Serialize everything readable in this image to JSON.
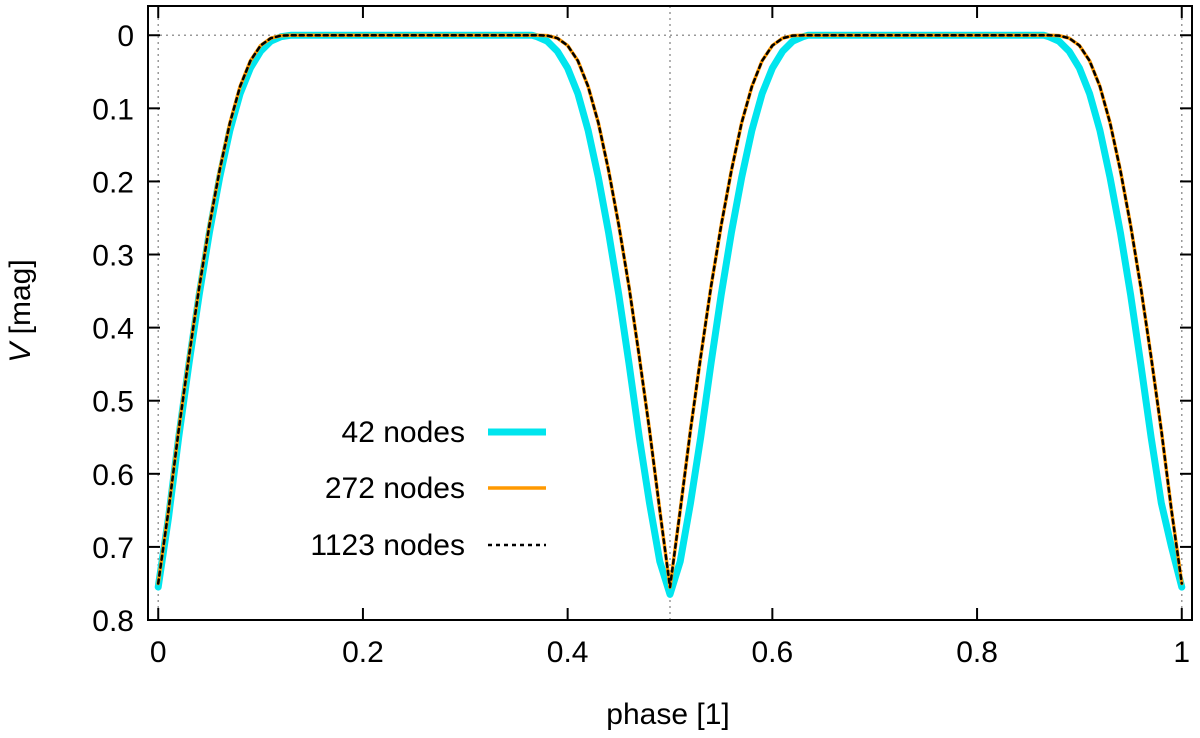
{
  "chart_data": {
    "type": "line",
    "xlabel": "phase [1]",
    "ylabel_italic": "V",
    "ylabel_unit": " [mag]",
    "xlim": [
      -0.01,
      1.01
    ],
    "ylim": [
      -0.04,
      0.8
    ],
    "y_inverted": true,
    "xticks": [
      0,
      0.2,
      0.4,
      0.6,
      0.8,
      1
    ],
    "xtick_labels": [
      "0",
      "0.2",
      "0.4",
      "0.6",
      "0.8",
      "1"
    ],
    "yticks": [
      0,
      0.1,
      0.2,
      0.3,
      0.4,
      0.5,
      0.6,
      0.7,
      0.8
    ],
    "ytick_labels": [
      "0",
      "0.1",
      "0.2",
      "0.3",
      "0.4",
      "0.5",
      "0.6",
      "0.7",
      "0.8"
    ],
    "reference_lines": {
      "x": [
        0,
        0.5,
        1
      ],
      "y": [
        0
      ],
      "style": "dotted"
    },
    "legend_position": "lower-left",
    "series": [
      {
        "name": "42 nodes",
        "color": "#00e5ee",
        "style": "solid-thick",
        "x": [
          0,
          0.01,
          0.02,
          0.03,
          0.04,
          0.05,
          0.06,
          0.07,
          0.08,
          0.09,
          0.1,
          0.11,
          0.12,
          0.13,
          0.135,
          0.14,
          0.365,
          0.37,
          0.38,
          0.39,
          0.4,
          0.41,
          0.42,
          0.43,
          0.44,
          0.45,
          0.46,
          0.47,
          0.48,
          0.49,
          0.5,
          0.51,
          0.52,
          0.53,
          0.54,
          0.55,
          0.56,
          0.57,
          0.58,
          0.59,
          0.6,
          0.61,
          0.62,
          0.63,
          0.635,
          0.64,
          0.865,
          0.87,
          0.88,
          0.89,
          0.9,
          0.91,
          0.92,
          0.93,
          0.94,
          0.95,
          0.96,
          0.97,
          0.98,
          0.99,
          1.0
        ],
        "y": [
          0.755,
          0.66,
          0.55,
          0.45,
          0.355,
          0.27,
          0.195,
          0.13,
          0.08,
          0.045,
          0.022,
          0.008,
          0.002,
          0.0,
          0.0,
          0.0,
          0.0,
          0.002,
          0.008,
          0.022,
          0.045,
          0.08,
          0.13,
          0.195,
          0.27,
          0.355,
          0.45,
          0.55,
          0.64,
          0.72,
          0.765,
          0.72,
          0.64,
          0.55,
          0.45,
          0.355,
          0.27,
          0.195,
          0.13,
          0.08,
          0.045,
          0.022,
          0.008,
          0.002,
          0.0,
          0.0,
          0.0,
          0.002,
          0.008,
          0.022,
          0.045,
          0.08,
          0.13,
          0.195,
          0.27,
          0.355,
          0.45,
          0.55,
          0.64,
          0.7,
          0.755
        ]
      },
      {
        "name": "272 nodes",
        "color": "#ff9900",
        "style": "solid",
        "x": [
          0,
          0.01,
          0.02,
          0.03,
          0.04,
          0.05,
          0.06,
          0.07,
          0.08,
          0.09,
          0.1,
          0.11,
          0.12,
          0.13,
          0.37,
          0.38,
          0.39,
          0.4,
          0.41,
          0.42,
          0.43,
          0.44,
          0.45,
          0.46,
          0.47,
          0.48,
          0.49,
          0.5,
          0.51,
          0.52,
          0.53,
          0.54,
          0.55,
          0.56,
          0.57,
          0.58,
          0.59,
          0.6,
          0.61,
          0.62,
          0.63,
          0.87,
          0.88,
          0.89,
          0.9,
          0.91,
          0.92,
          0.93,
          0.94,
          0.95,
          0.96,
          0.97,
          0.98,
          0.99,
          1.0
        ],
        "y": [
          0.75,
          0.65,
          0.54,
          0.44,
          0.345,
          0.26,
          0.185,
          0.12,
          0.07,
          0.035,
          0.014,
          0.004,
          0.0005,
          0.0,
          0.0,
          0.0005,
          0.004,
          0.014,
          0.035,
          0.07,
          0.12,
          0.185,
          0.26,
          0.345,
          0.44,
          0.54,
          0.65,
          0.755,
          0.65,
          0.54,
          0.44,
          0.345,
          0.26,
          0.185,
          0.12,
          0.07,
          0.035,
          0.014,
          0.004,
          0.0005,
          0.0,
          0.0,
          0.0005,
          0.004,
          0.014,
          0.035,
          0.07,
          0.12,
          0.185,
          0.26,
          0.345,
          0.44,
          0.54,
          0.65,
          0.75
        ]
      },
      {
        "name": "1123 nodes",
        "color": "#000000",
        "style": "dotted",
        "x": [
          0,
          0.01,
          0.02,
          0.03,
          0.04,
          0.05,
          0.06,
          0.07,
          0.08,
          0.09,
          0.1,
          0.11,
          0.12,
          0.13,
          0.37,
          0.38,
          0.39,
          0.4,
          0.41,
          0.42,
          0.43,
          0.44,
          0.45,
          0.46,
          0.47,
          0.48,
          0.49,
          0.5,
          0.51,
          0.52,
          0.53,
          0.54,
          0.55,
          0.56,
          0.57,
          0.58,
          0.59,
          0.6,
          0.61,
          0.62,
          0.63,
          0.87,
          0.88,
          0.89,
          0.9,
          0.91,
          0.92,
          0.93,
          0.94,
          0.95,
          0.96,
          0.97,
          0.98,
          0.99,
          1.0
        ],
        "y": [
          0.75,
          0.65,
          0.54,
          0.44,
          0.345,
          0.26,
          0.185,
          0.12,
          0.07,
          0.035,
          0.014,
          0.004,
          0.0005,
          0.0,
          0.0,
          0.0005,
          0.004,
          0.014,
          0.035,
          0.07,
          0.12,
          0.185,
          0.26,
          0.345,
          0.44,
          0.54,
          0.65,
          0.755,
          0.65,
          0.54,
          0.44,
          0.345,
          0.26,
          0.185,
          0.12,
          0.07,
          0.035,
          0.014,
          0.004,
          0.0005,
          0.0,
          0.0,
          0.0005,
          0.004,
          0.014,
          0.035,
          0.07,
          0.12,
          0.185,
          0.26,
          0.345,
          0.44,
          0.54,
          0.65,
          0.75
        ]
      }
    ]
  }
}
